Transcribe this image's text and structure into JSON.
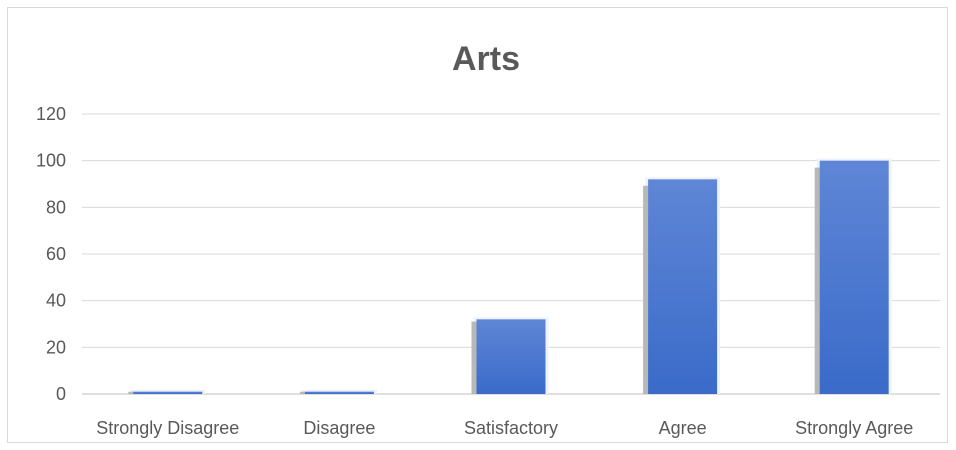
{
  "chart_data": {
    "type": "bar",
    "title": "Arts",
    "xlabel": "",
    "ylabel": "",
    "categories": [
      "Strongly Disagree",
      "Disagree",
      "Satisfactory",
      "Agree",
      "Strongly Agree"
    ],
    "values": [
      1,
      1,
      32,
      92,
      100
    ],
    "ylim": [
      0,
      120
    ],
    "yticks": [
      0,
      20,
      40,
      60,
      80,
      100,
      120
    ],
    "grid": true,
    "legend": "none",
    "bar_color": "#3a6bc9",
    "bar_color_light": "#5f86d6"
  }
}
